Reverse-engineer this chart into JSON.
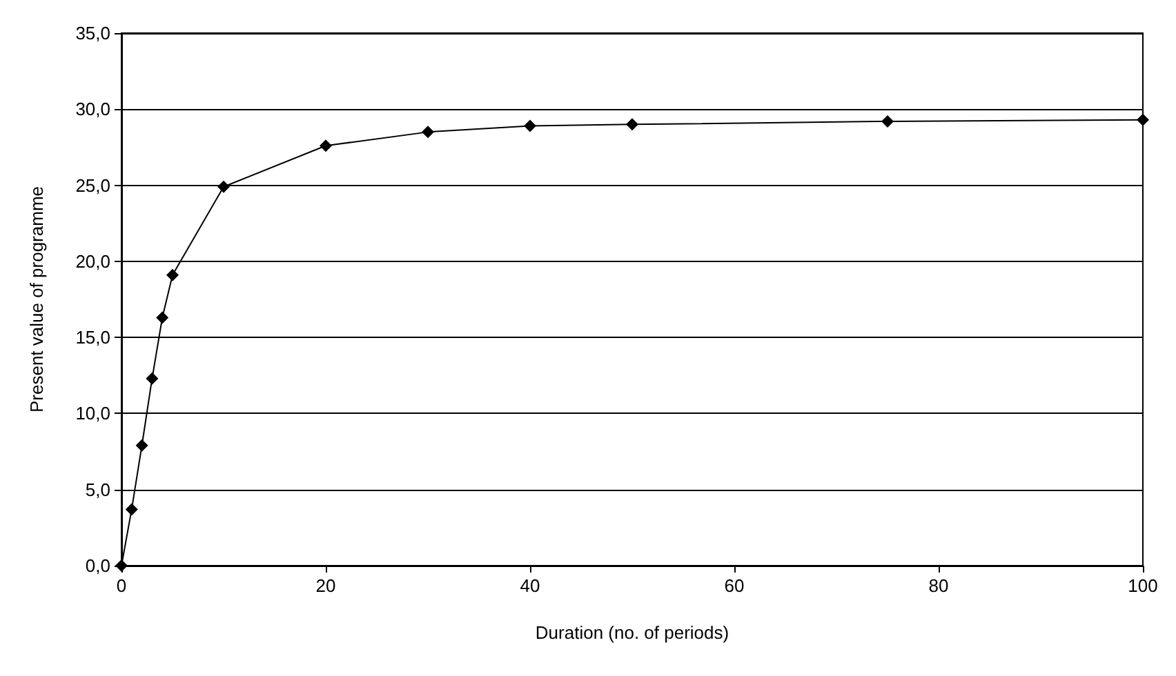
{
  "chart_data": {
    "type": "line",
    "xlabel": "Duration (no. of periods)",
    "ylabel": "Present value of programme",
    "x": [
      0,
      1,
      2,
      3,
      4,
      5,
      10,
      20,
      30,
      40,
      50,
      75,
      100
    ],
    "series": [
      {
        "color": "#000000",
        "values": [
          0,
          3.7,
          7.9,
          12.3,
          16.3,
          19.1,
          24.9,
          27.6,
          28.5,
          28.9,
          29.0,
          29.2,
          29.3
        ]
      }
    ],
    "xlim": [
      0,
      100
    ],
    "xticks": [
      0,
      20,
      40,
      60,
      80,
      100
    ],
    "ylim": [
      0,
      35
    ],
    "yticks": [
      {
        "value": 0,
        "label": "0,0"
      },
      {
        "value": 5,
        "label": "5,0"
      },
      {
        "value": 10,
        "label": "10,0"
      },
      {
        "value": 15,
        "label": "15,0"
      },
      {
        "value": 20,
        "label": "20,0"
      },
      {
        "value": 25,
        "label": "25,0"
      },
      {
        "value": 30,
        "label": "30,0"
      },
      {
        "value": 35,
        "label": "35,0"
      }
    ],
    "grid": "y",
    "marker": "diamond",
    "line_style": "solid"
  }
}
